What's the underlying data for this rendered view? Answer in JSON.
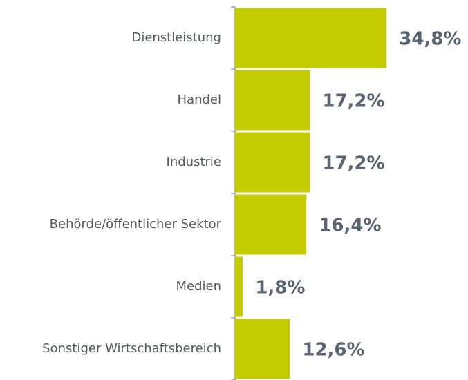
{
  "chart_data": {
    "type": "bar",
    "orientation": "horizontal",
    "categories": [
      "Dienstleistung",
      "Handel",
      "Industrie",
      "Behörde/öffentlicher Sektor",
      "Medien",
      "Sonstiger Wirtschaftsbereich"
    ],
    "values": [
      34.8,
      17.2,
      17.2,
      16.4,
      1.8,
      12.6
    ],
    "value_labels": [
      "34,8%",
      "17,2%",
      "17,2%",
      "16,4%",
      "1,8%",
      "12,6%"
    ],
    "color": "#c3cc00"
  }
}
